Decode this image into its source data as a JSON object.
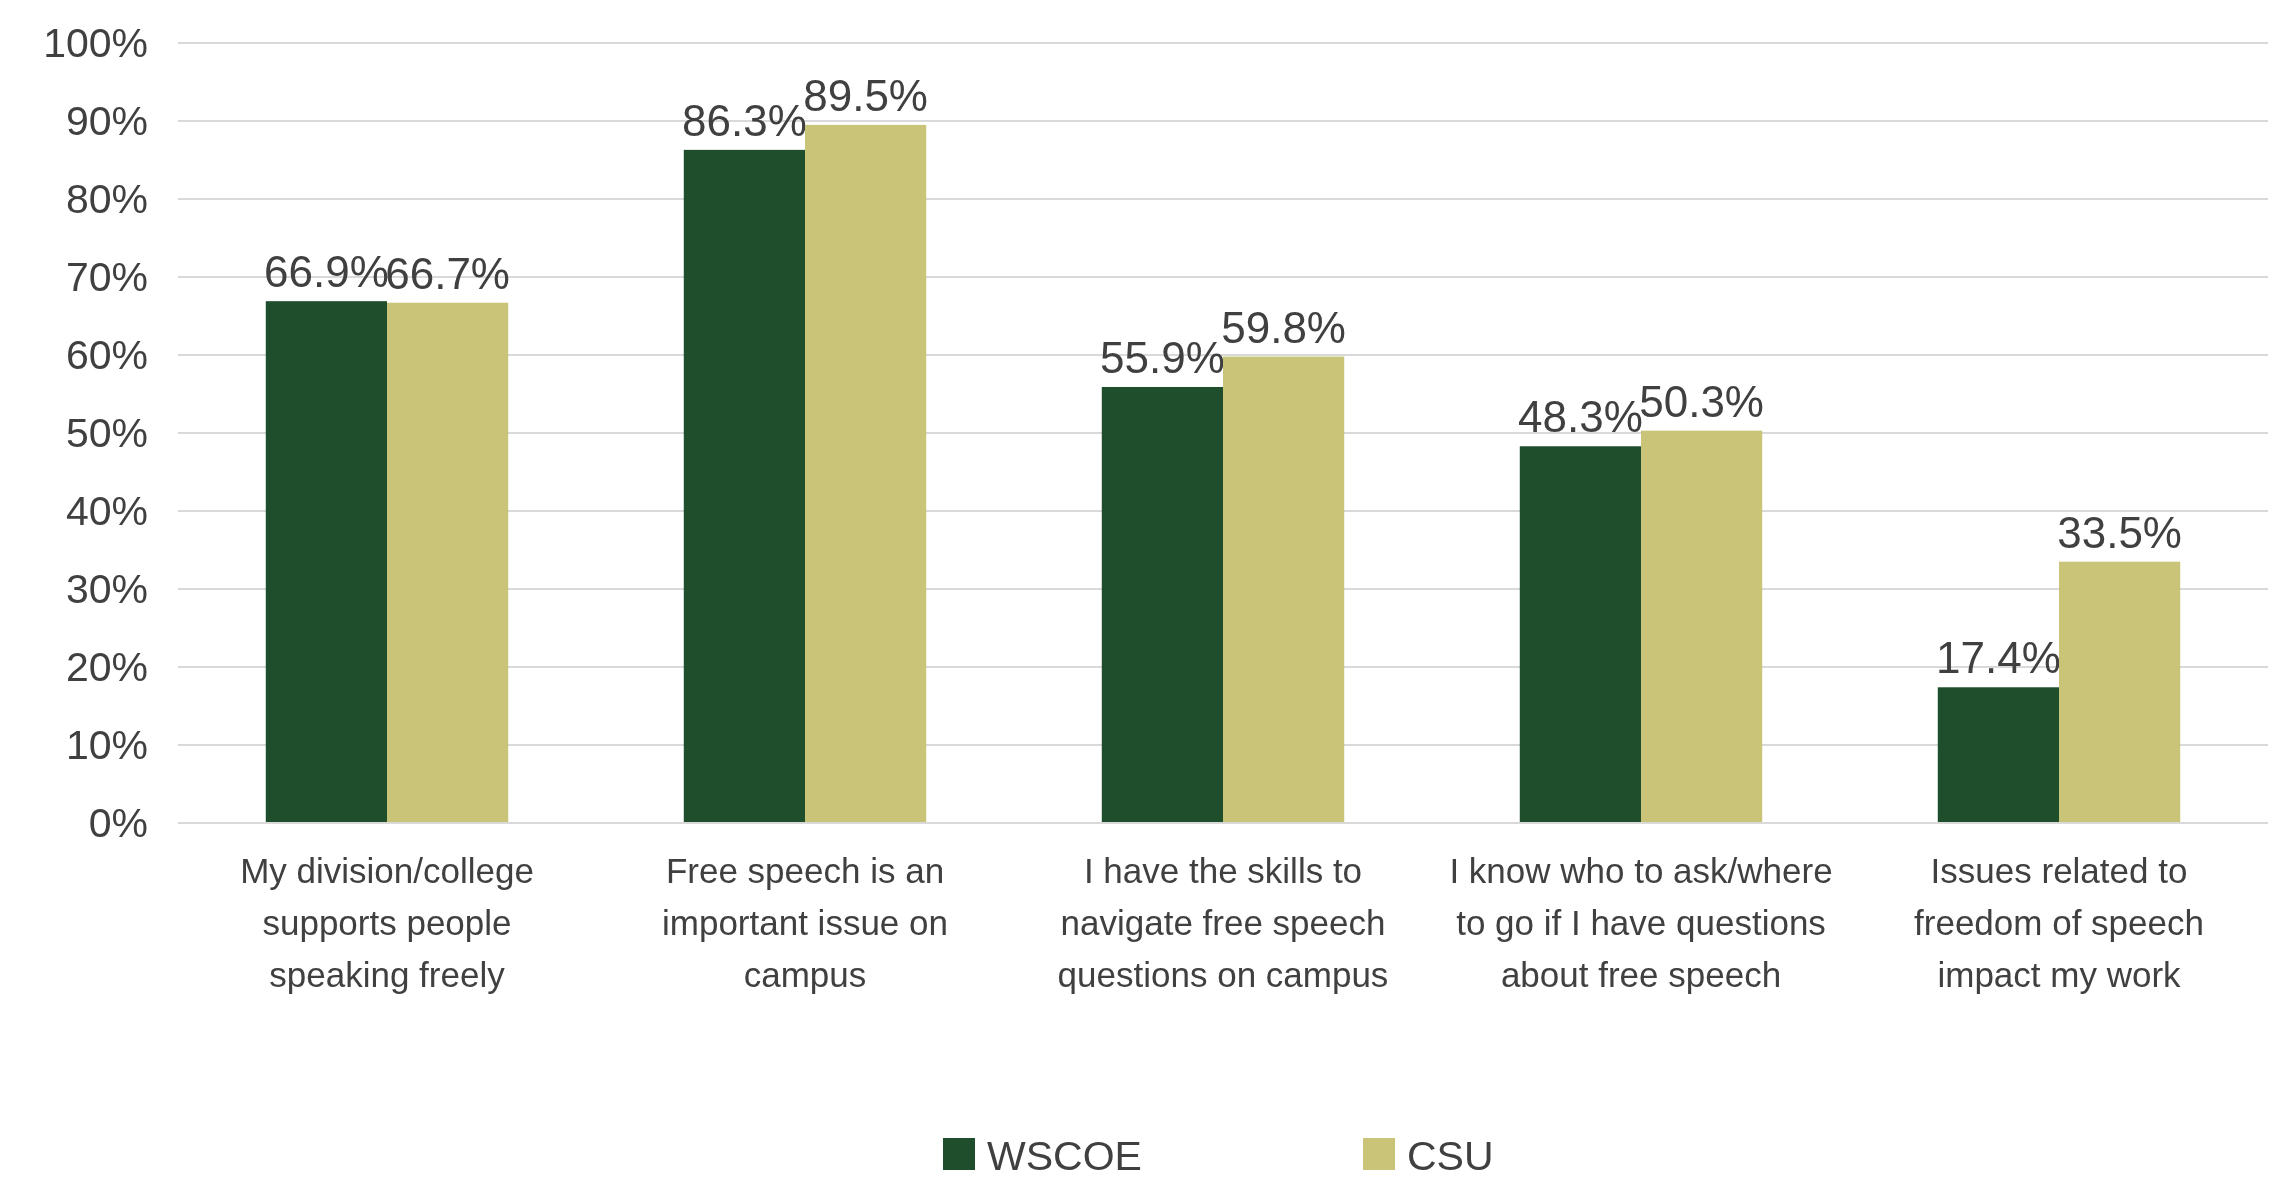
{
  "chart_data": {
    "type": "bar",
    "categories": [
      "My division/college supports people speaking freely",
      "Free speech is an important issue on campus",
      "I have the skills to navigate free speech questions on campus",
      "I know who to ask/where to go if I have questions about free speech",
      "Issues related to freedom of speech impact my work"
    ],
    "series": [
      {
        "name": "WSCOE",
        "color": "#1f4e2c",
        "values": [
          66.9,
          86.3,
          55.9,
          48.3,
          17.4
        ],
        "value_labels": [
          "66.9%",
          "86.3%",
          "55.9%",
          "48.3%",
          "17.4%"
        ]
      },
      {
        "name": "CSU",
        "color": "#c9c478",
        "values": [
          66.7,
          89.5,
          59.8,
          50.3,
          33.5
        ],
        "value_labels": [
          "66.7%",
          "89.5%",
          "59.8%",
          "50.3%",
          "33.5%"
        ]
      }
    ],
    "ylim": [
      0,
      100
    ],
    "yticks": [
      {
        "value": 0,
        "label": "0%"
      },
      {
        "value": 10,
        "label": "10%"
      },
      {
        "value": 20,
        "label": "20%"
      },
      {
        "value": 30,
        "label": "30%"
      },
      {
        "value": 40,
        "label": "40%"
      },
      {
        "value": 50,
        "label": "50%"
      },
      {
        "value": 60,
        "label": "60%"
      },
      {
        "value": 70,
        "label": "70%"
      },
      {
        "value": 80,
        "label": "80%"
      },
      {
        "value": 90,
        "label": "90%"
      },
      {
        "value": 100,
        "label": "100%"
      }
    ],
    "grid": "y",
    "legend": "bottom"
  }
}
